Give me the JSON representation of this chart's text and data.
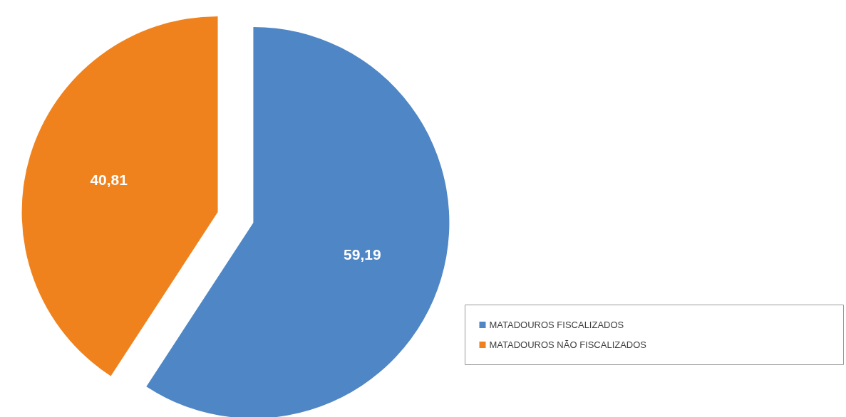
{
  "chart_data": {
    "type": "pie",
    "categories": [
      "MATADOUROS FISCALIZADOS",
      "MATADOUROS NÃO FISCALIZADOS"
    ],
    "values": [
      59.19,
      40.81
    ],
    "colors": [
      "#4f86c6",
      "#f0821e"
    ],
    "value_labels": [
      "59,19",
      "40,81"
    ],
    "legend": "right"
  }
}
